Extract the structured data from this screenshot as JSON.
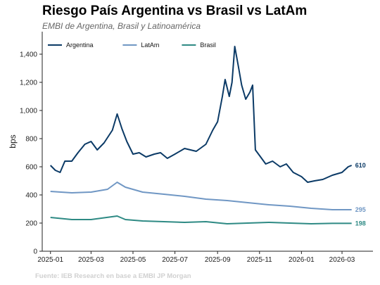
{
  "header": {
    "title": "Riesgo País Argentina vs Brasil vs LatAm",
    "subtitle": "EMBI de Argentina, Brasil y Latinoamérica",
    "source": "Fuente: IEB Research en base a EMBI JP Morgan"
  },
  "chart_data": {
    "type": "line",
    "ylabel": "bps",
    "xlabel": "",
    "ylim": [
      0,
      1560
    ],
    "yticks": [
      0,
      200,
      400,
      600,
      800,
      1000,
      1200,
      1400
    ],
    "ytick_labels": [
      "0",
      "200",
      "400",
      "600",
      "800",
      "1,000",
      "1,200",
      "1,400"
    ],
    "xlim": [
      "2024-12-20",
      "2026-04-15"
    ],
    "xticks": [
      "2025-01-01",
      "2025-03-01",
      "2025-05-01",
      "2025-07-01",
      "2025-09-01",
      "2025-11-01",
      "2026-01-01",
      "2026-03-01"
    ],
    "xtick_labels": [
      "2025-01",
      "2025-03",
      "2025-05",
      "2025-07",
      "2025-09",
      "2025-11",
      "2026-01",
      "2026-03"
    ],
    "grid": false,
    "legend_position": "top-left",
    "series": [
      {
        "name": "Argentina",
        "color": "#0b3a66",
        "end_label": "610",
        "points": [
          [
            "2025-01-01",
            610
          ],
          [
            "2025-01-08",
            575
          ],
          [
            "2025-01-15",
            560
          ],
          [
            "2025-01-22",
            640
          ],
          [
            "2025-02-01",
            640
          ],
          [
            "2025-02-10",
            700
          ],
          [
            "2025-02-20",
            760
          ],
          [
            "2025-03-01",
            780
          ],
          [
            "2025-03-10",
            720
          ],
          [
            "2025-03-20",
            770
          ],
          [
            "2025-04-01",
            860
          ],
          [
            "2025-04-08",
            975
          ],
          [
            "2025-04-15",
            870
          ],
          [
            "2025-04-22",
            780
          ],
          [
            "2025-05-01",
            690
          ],
          [
            "2025-05-10",
            700
          ],
          [
            "2025-05-20",
            670
          ],
          [
            "2025-06-01",
            690
          ],
          [
            "2025-06-10",
            700
          ],
          [
            "2025-06-20",
            660
          ],
          [
            "2025-07-01",
            690
          ],
          [
            "2025-07-15",
            730
          ],
          [
            "2025-08-01",
            710
          ],
          [
            "2025-08-15",
            760
          ],
          [
            "2025-08-25",
            860
          ],
          [
            "2025-09-01",
            920
          ],
          [
            "2025-09-08",
            1100
          ],
          [
            "2025-09-12",
            1220
          ],
          [
            "2025-09-18",
            1100
          ],
          [
            "2025-09-22",
            1200
          ],
          [
            "2025-09-26",
            1455
          ],
          [
            "2025-10-01",
            1320
          ],
          [
            "2025-10-06",
            1180
          ],
          [
            "2025-10-12",
            1080
          ],
          [
            "2025-10-18",
            1130
          ],
          [
            "2025-10-22",
            1180
          ],
          [
            "2025-10-26",
            720
          ],
          [
            "2025-11-01",
            680
          ],
          [
            "2025-11-10",
            620
          ],
          [
            "2025-11-20",
            640
          ],
          [
            "2025-12-01",
            600
          ],
          [
            "2025-12-10",
            620
          ],
          [
            "2025-12-20",
            560
          ],
          [
            "2026-01-01",
            530
          ],
          [
            "2026-01-10",
            490
          ],
          [
            "2026-01-20",
            500
          ],
          [
            "2026-02-01",
            510
          ],
          [
            "2026-02-15",
            540
          ],
          [
            "2026-03-01",
            560
          ],
          [
            "2026-03-10",
            600
          ],
          [
            "2026-03-15",
            610
          ]
        ]
      },
      {
        "name": "LatAm",
        "color": "#7097c4",
        "end_label": "295",
        "points": [
          [
            "2025-01-01",
            425
          ],
          [
            "2025-02-01",
            415
          ],
          [
            "2025-03-01",
            420
          ],
          [
            "2025-03-25",
            440
          ],
          [
            "2025-04-08",
            490
          ],
          [
            "2025-04-20",
            455
          ],
          [
            "2025-05-15",
            420
          ],
          [
            "2025-06-15",
            405
          ],
          [
            "2025-07-15",
            390
          ],
          [
            "2025-08-15",
            370
          ],
          [
            "2025-09-15",
            360
          ],
          [
            "2025-10-15",
            345
          ],
          [
            "2025-11-15",
            330
          ],
          [
            "2025-12-15",
            320
          ],
          [
            "2026-01-15",
            305
          ],
          [
            "2026-02-15",
            295
          ],
          [
            "2026-03-15",
            295
          ]
        ]
      },
      {
        "name": "Brasil",
        "color": "#2e8a84",
        "end_label": "198",
        "points": [
          [
            "2025-01-01",
            240
          ],
          [
            "2025-02-01",
            225
          ],
          [
            "2025-03-01",
            225
          ],
          [
            "2025-04-08",
            250
          ],
          [
            "2025-04-20",
            225
          ],
          [
            "2025-05-15",
            215
          ],
          [
            "2025-06-15",
            210
          ],
          [
            "2025-07-15",
            205
          ],
          [
            "2025-08-15",
            210
          ],
          [
            "2025-09-15",
            195
          ],
          [
            "2025-10-15",
            200
          ],
          [
            "2025-11-15",
            205
          ],
          [
            "2025-12-15",
            200
          ],
          [
            "2026-01-15",
            195
          ],
          [
            "2026-02-15",
            198
          ],
          [
            "2026-03-15",
            198
          ]
        ]
      }
    ]
  }
}
